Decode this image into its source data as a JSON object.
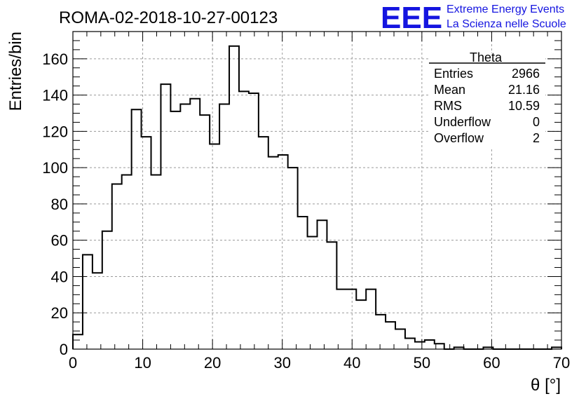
{
  "header": {
    "run_title": "ROMA-02-2018-10-27-00123",
    "logo_letters": "EEE",
    "logo_line1": "Extreme Energy Events",
    "logo_line2": "La Scienza nelle Scuole",
    "logo_color": "#1515e0"
  },
  "stats_box": {
    "title": "Theta",
    "rows": [
      {
        "label": "Entries",
        "value": "2966"
      },
      {
        "label": "Mean",
        "value": "21.16"
      },
      {
        "label": "RMS",
        "value": "10.59"
      },
      {
        "label": "Underflow",
        "value": "0"
      },
      {
        "label": "Overflow",
        "value": "2"
      }
    ]
  },
  "chart_data": {
    "type": "histogram",
    "title": "ROMA-02-2018-10-27-00123",
    "xlabel": "θ [°]",
    "ylabel": "Entries/bin",
    "xlim": [
      0,
      70
    ],
    "ylim": [
      0,
      175
    ],
    "grid": true,
    "bin_width": 1.4,
    "bin_start": 0,
    "values": [
      8,
      52,
      42,
      65,
      91,
      96,
      132,
      117,
      96,
      146,
      131,
      135,
      138,
      129,
      113,
      135,
      167,
      142,
      141,
      117,
      106,
      107,
      100,
      73,
      62,
      71,
      59,
      33,
      33,
      27,
      33,
      19,
      15,
      11,
      6,
      4,
      5,
      3,
      0,
      1,
      0,
      0,
      1,
      0,
      0,
      0,
      0,
      0,
      0,
      1
    ],
    "x_ticks": [
      0,
      10,
      20,
      30,
      40,
      50,
      60,
      70
    ],
    "y_ticks": [
      0,
      20,
      40,
      60,
      80,
      100,
      120,
      140,
      160
    ],
    "line_color": "#000000"
  }
}
